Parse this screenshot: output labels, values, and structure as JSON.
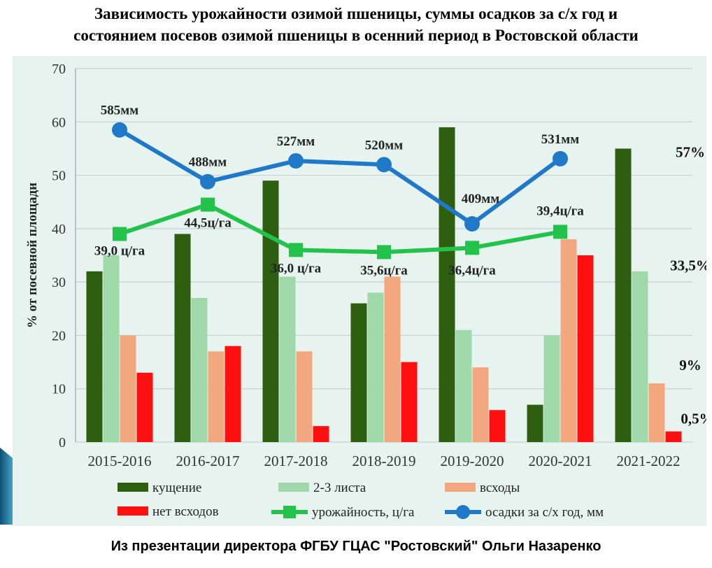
{
  "title": {
    "line1": "Зависимость урожайности озимой пшеницы, суммы осадков за с/х год и",
    "line2": "состоянием посевов озимой пшеницы в осенний период в Ростовской области"
  },
  "caption": "Из презентации директора ФГБУ ГЦАС \"Ростовский\" Ольги Назаренко",
  "colors": {
    "background": "#e7f3ee",
    "tillering": "#2e5e10",
    "leaves": "#9fd9a9",
    "shoots": "#f2a77e",
    "no_shoots": "#ff1010",
    "yield": "#22c24b",
    "precip": "#1f78c8"
  },
  "chart_data": {
    "type": "bar",
    "title": "Зависимость урожайности озимой пшеницы, суммы осадков за с/х год и состоянием посевов озимой пшеницы в осенний период в Ростовской области",
    "ylabel": "% от посевной площади",
    "ylim": [
      0,
      70
    ],
    "yticks": [
      0,
      10,
      20,
      30,
      40,
      50,
      60,
      70
    ],
    "grid": true,
    "legend_position": "bottom",
    "categories": [
      "2015-2016",
      "2016-2017",
      "2017-2018",
      "2018-2019",
      "2019-2020",
      "2020-2021",
      "2021-2022"
    ],
    "series": [
      {
        "key": "tillering",
        "name": "кущение",
        "type": "bar",
        "values": [
          32,
          39,
          49,
          26,
          59,
          7,
          55
        ]
      },
      {
        "key": "leaves",
        "name": "2-3 листа",
        "type": "bar",
        "values": [
          35,
          27,
          31,
          28,
          21,
          20,
          32
        ]
      },
      {
        "key": "shoots",
        "name": "всходы",
        "type": "bar",
        "values": [
          20,
          17,
          17,
          31,
          14,
          38,
          11
        ]
      },
      {
        "key": "no_shoots",
        "name": "нет всходов",
        "type": "bar",
        "values": [
          13,
          18,
          3,
          15,
          6,
          35,
          2
        ]
      },
      {
        "key": "yield",
        "name": "урожайность, ц/га",
        "type": "line",
        "values": [
          39.0,
          44.5,
          36.0,
          35.6,
          36.4,
          39.4,
          null
        ],
        "labels": [
          "39,0 ц/га",
          "44,5ц/га",
          "36,0 ц/га",
          "35,6ц/га",
          "36,4ц/га",
          "39,4ц/га",
          ""
        ]
      },
      {
        "key": "precip",
        "name": "осадки за с/х год, мм",
        "type": "line",
        "plot_values": [
          58.5,
          48.8,
          52.7,
          52.0,
          40.9,
          53.1,
          null
        ],
        "labels": [
          "585мм",
          "488мм",
          "527мм",
          "520мм",
          "409мм",
          "531мм",
          ""
        ]
      }
    ],
    "annotations": [
      "57%",
      "33,5%",
      "9%",
      "0,5%"
    ]
  }
}
